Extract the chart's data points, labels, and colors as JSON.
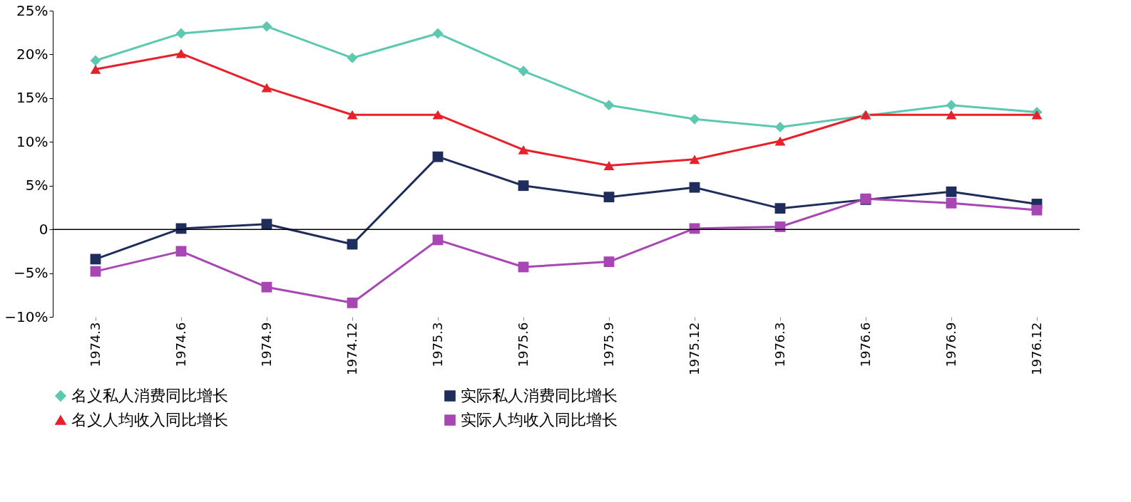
{
  "chart_data": {
    "type": "line",
    "categories": [
      "1974.3",
      "1974.6",
      "1974.9",
      "1974.12",
      "1975.3",
      "1975.6",
      "1975.9",
      "1975.12",
      "1976.3",
      "1976.6",
      "1976.9",
      "1976.12"
    ],
    "series": [
      {
        "name": "名义私人消费同比增长",
        "color": "#5cc8b0",
        "marker": "diamond",
        "values": [
          19.3,
          22.4,
          23.2,
          19.6,
          22.4,
          18.1,
          14.2,
          12.6,
          11.7,
          13.0,
          14.2,
          13.4
        ]
      },
      {
        "name": "实际私人消费同比增长",
        "color": "#1f2d5c",
        "marker": "square",
        "values": [
          -3.4,
          0.1,
          0.6,
          -1.7,
          8.3,
          5.0,
          3.7,
          4.8,
          2.4,
          3.4,
          4.3,
          2.9
        ]
      },
      {
        "name": "名义人均收入同比增长",
        "color": "#e8202a",
        "marker": "triangle",
        "values": [
          18.3,
          20.1,
          16.2,
          13.1,
          13.1,
          9.1,
          7.3,
          8.0,
          10.1,
          13.1,
          13.1,
          13.1
        ]
      },
      {
        "name": "实际人均收入同比增长",
        "color": "#a846b4",
        "marker": "square",
        "values": [
          -4.8,
          -2.5,
          -6.6,
          -8.4,
          -1.2,
          -4.3,
          -3.7,
          0.1,
          0.3,
          3.5,
          3.0,
          2.2
        ]
      }
    ],
    "ylim": [
      -10,
      25
    ],
    "yticks": [
      {
        "value": -10,
        "label": "−10%"
      },
      {
        "value": -5,
        "label": "−5%"
      },
      {
        "value": 0,
        "label": "0"
      },
      {
        "value": 5,
        "label": "5%"
      },
      {
        "value": 10,
        "label": "10%"
      },
      {
        "value": 15,
        "label": "15%"
      },
      {
        "value": 20,
        "label": "20%"
      },
      {
        "value": 25,
        "label": "25%"
      }
    ],
    "ref_lines": [
      {
        "axis": "y",
        "value": 0,
        "color": "#000000"
      }
    ],
    "legend": "bottom",
    "grid": false,
    "line_style": "solid"
  }
}
